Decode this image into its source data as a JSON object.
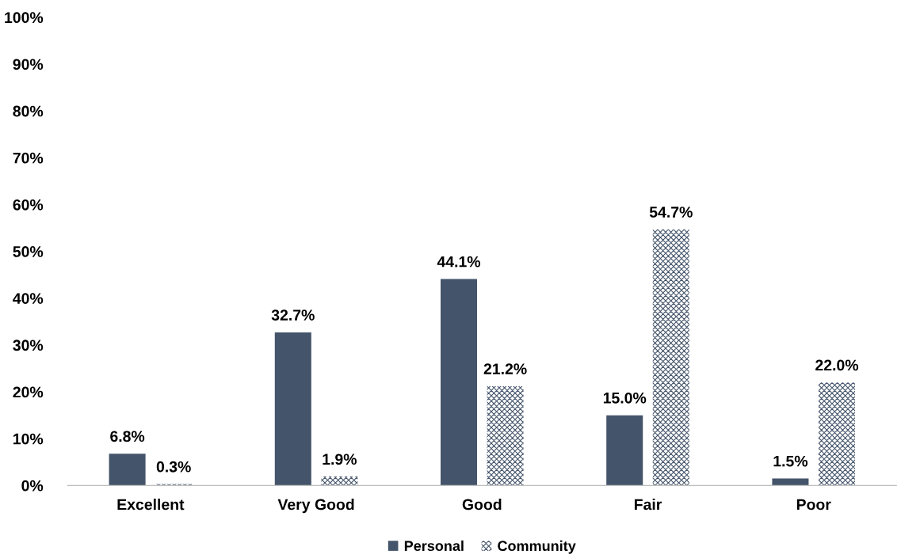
{
  "chart_data": {
    "type": "bar",
    "categories": [
      "Excellent",
      "Very Good",
      "Good",
      "Fair",
      "Poor"
    ],
    "series": [
      {
        "name": "Personal",
        "color": "#44546a",
        "values": [
          6.8,
          32.7,
          44.1,
          15.0,
          1.5
        ],
        "value_labels": [
          "6.8%",
          "32.7%",
          "44.1%",
          "15.0%",
          "1.5%"
        ]
      },
      {
        "name": "Community",
        "color": "#44546a",
        "values": [
          0.3,
          1.9,
          21.2,
          54.7,
          22.0
        ],
        "value_labels": [
          "0.3%",
          "1.9%",
          "21.2%",
          "54.7%",
          "22.0%"
        ]
      }
    ],
    "ylim": [
      0,
      100
    ],
    "yticks": [
      {
        "value": 0,
        "label": "0%"
      },
      {
        "value": 10,
        "label": "10%"
      },
      {
        "value": 20,
        "label": "20%"
      },
      {
        "value": 30,
        "label": "30%"
      },
      {
        "value": 40,
        "label": "40%"
      },
      {
        "value": 50,
        "label": "50%"
      },
      {
        "value": 60,
        "label": "60%"
      },
      {
        "value": 70,
        "label": "70%"
      },
      {
        "value": 80,
        "label": "80%"
      },
      {
        "value": 90,
        "label": "90%"
      },
      {
        "value": 100,
        "label": "100%"
      }
    ],
    "grid": false,
    "legend": "bottom"
  }
}
